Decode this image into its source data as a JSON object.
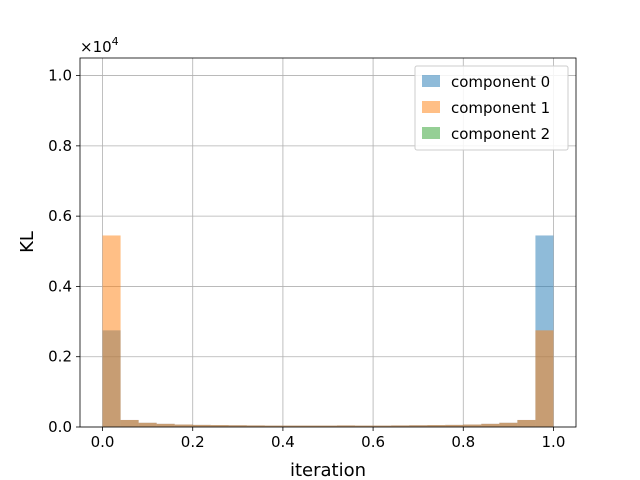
{
  "chart_data": {
    "type": "bar",
    "xlabel": "iteration",
    "ylabel": "KL",
    "xlim": [
      -0.05,
      1.05
    ],
    "ylim": [
      0,
      10500
    ],
    "x_ticks": [
      "0.0",
      "0.2",
      "0.4",
      "0.6",
      "0.8",
      "1.0"
    ],
    "x_tick_values": [
      0.0,
      0.2,
      0.4,
      0.6,
      0.8,
      1.0
    ],
    "y_ticks": [
      "0.0",
      "0.2",
      "0.4",
      "0.6",
      "0.8",
      "1.0"
    ],
    "y_tick_values": [
      0,
      2000,
      4000,
      6000,
      8000,
      10000
    ],
    "y_multiplier_base": "×10",
    "y_multiplier_exp": "4",
    "grid": true,
    "legend_position": "top-right",
    "bin_edges": [
      0.0,
      0.04,
      0.08,
      0.12,
      0.16,
      0.2,
      0.24,
      0.28,
      0.32,
      0.36,
      0.4,
      0.44,
      0.48,
      0.52,
      0.56,
      0.6,
      0.64,
      0.68,
      0.72,
      0.76,
      0.8,
      0.84,
      0.88,
      0.92,
      0.96,
      1.0
    ],
    "series": [
      {
        "name": "component 0",
        "color": "#1f77b4",
        "values": [
          2750,
          200,
          120,
          90,
          70,
          60,
          55,
          50,
          45,
          40,
          40,
          40,
          40,
          45,
          40,
          40,
          45,
          50,
          55,
          60,
          70,
          90,
          120,
          200,
          5450
        ]
      },
      {
        "name": "component 1",
        "color": "#ff7f0e",
        "values": [
          5450,
          200,
          120,
          90,
          70,
          60,
          55,
          50,
          45,
          40,
          40,
          40,
          40,
          45,
          40,
          40,
          45,
          50,
          55,
          60,
          70,
          90,
          120,
          200,
          2750
        ]
      },
      {
        "name": "component 2",
        "color": "#2ca02c",
        "values": [
          0,
          0,
          0,
          0,
          0,
          0,
          0,
          0,
          0,
          0,
          0,
          0,
          0,
          0,
          0,
          0,
          0,
          0,
          0,
          0,
          0,
          0,
          0,
          0,
          0
        ]
      }
    ]
  }
}
